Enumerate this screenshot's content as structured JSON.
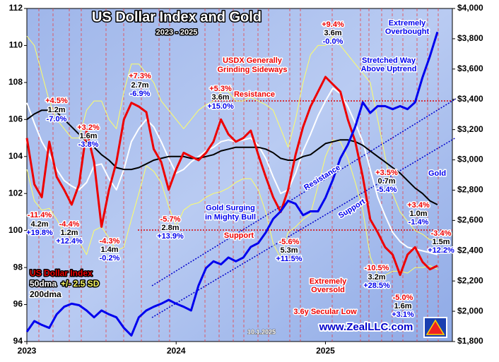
{
  "chart_data": {
    "type": "line",
    "title": "US Dollar Index and Gold",
    "subtitle": "2023 - 2025",
    "x": [
      2023.0,
      2023.05,
      2023.1,
      2023.15,
      2023.2,
      2023.25,
      2023.3,
      2023.35,
      2023.4,
      2023.45,
      2023.5,
      2023.55,
      2023.6,
      2023.65,
      2023.7,
      2023.75,
      2023.8,
      2023.85,
      2023.9,
      2023.95,
      2024.0,
      2024.05,
      2024.1,
      2024.15,
      2024.2,
      2024.25,
      2024.3,
      2024.35,
      2024.4,
      2024.45,
      2024.5,
      2024.55,
      2024.6,
      2024.65,
      2024.7,
      2024.75,
      2024.8,
      2024.85,
      2024.9,
      2024.95,
      2025.0,
      2025.05,
      2025.1,
      2025.15,
      2025.2,
      2025.25,
      2025.3,
      2025.35,
      2025.4,
      2025.45,
      2025.5,
      2025.55,
      2025.6,
      2025.65,
      2025.7,
      2025.75
    ],
    "xlim": [
      2023,
      2025.85
    ],
    "xticks": [
      2023,
      2024,
      2025
    ],
    "ylim": [
      94,
      112
    ],
    "yticks": [
      94,
      96,
      98,
      100,
      102,
      104,
      106,
      108,
      110,
      112
    ],
    "y2lim": [
      1800,
      4000
    ],
    "y2ticks": [
      {
        "value": 1800,
        "label": "$1,800"
      },
      {
        "value": 2000,
        "label": "$2,000"
      },
      {
        "value": 2200,
        "label": "$2,200"
      },
      {
        "value": 2400,
        "label": "$2,400"
      },
      {
        "value": 2600,
        "label": "$2,600"
      },
      {
        "value": 2800,
        "label": "$2,800"
      },
      {
        "value": 3000,
        "label": "$3,000"
      },
      {
        "value": 3200,
        "label": "$3,200"
      },
      {
        "value": 3400,
        "label": "$3,400"
      },
      {
        "value": 3600,
        "label": "$3,600"
      },
      {
        "value": 3800,
        "label": "$3,800"
      },
      {
        "value": 4000,
        "label": "$4,000"
      }
    ],
    "series": [
      {
        "name": "+/- 2.5 SD",
        "color": "#ffff66",
        "width": 1,
        "values": [
          110.5,
          110.0,
          108.5,
          107.0,
          106.0,
          105.5,
          105.0,
          105.0,
          106.5,
          107.0,
          107.0,
          106.0,
          105.5,
          107.5,
          109.0,
          109.0,
          108.5,
          108.0,
          107.0,
          106.5,
          106.0,
          105.5,
          106.0,
          106.5,
          106.8,
          107.0,
          107.5,
          107.5,
          107.0,
          107.0,
          107.2,
          107.0,
          106.8,
          106.5,
          105.5,
          104.5,
          106.0,
          108.0,
          109.5,
          110.0,
          110.0,
          110.5,
          110.0,
          109.5,
          109.0,
          108.5,
          108.0,
          106.0,
          104.0,
          102.0,
          101.0,
          100.5,
          100.0,
          99.8,
          99.5,
          99.5
        ],
        "lower": [
          103.3,
          101.6,
          101.1,
          101.2,
          100.6,
          99.9,
          99.8,
          99.4,
          98.7,
          100.0,
          100.2,
          99.6,
          98.9,
          99.1,
          100.6,
          102.0,
          103.5,
          103.2,
          102.6,
          101.3,
          100.2,
          101.1,
          101.4,
          101.5,
          101.8,
          102.0,
          102.1,
          102.3,
          102.6,
          102.8,
          102.8,
          102.2,
          101.0,
          99.3,
          98.5,
          99.9,
          100.2,
          100.6,
          100.9,
          102.4,
          104.0,
          104.9,
          104.8,
          103.9,
          102.6,
          101.1,
          98.6,
          97.6,
          97.6,
          97.8,
          97.8,
          97.7,
          98.0,
          98.0,
          98.1,
          97.9
        ]
      },
      {
        "name": "50dma",
        "color": "#ffffff",
        "width": 2,
        "values": [
          106.9,
          105.8,
          104.8,
          104.1,
          103.3,
          102.7,
          102.4,
          102.2,
          102.6,
          103.5,
          103.6,
          102.8,
          102.2,
          103.3,
          104.8,
          105.5,
          106.0,
          105.6,
          104.8,
          103.9,
          103.1,
          103.3,
          103.7,
          104.0,
          104.3,
          104.5,
          104.8,
          104.9,
          104.8,
          104.9,
          105.0,
          104.6,
          103.9,
          102.9,
          102.0,
          102.2,
          103.1,
          104.3,
          105.2,
          106.2,
          107.0,
          107.7,
          107.4,
          106.7,
          105.8,
          104.8,
          103.3,
          101.8,
          100.8,
          99.9,
          99.4,
          99.1,
          99.0,
          98.9,
          98.8,
          98.7
        ]
      },
      {
        "name": "200dma",
        "color": "#000000",
        "width": 2,
        "values": [
          106.0,
          106.3,
          106.5,
          106.5,
          106.4,
          106.0,
          105.6,
          105.2,
          104.8,
          104.5,
          104.1,
          103.8,
          103.4,
          103.3,
          103.3,
          103.4,
          103.6,
          103.8,
          103.9,
          104.0,
          104.0,
          104.0,
          103.9,
          103.9,
          104.0,
          104.1,
          104.3,
          104.4,
          104.5,
          104.5,
          104.5,
          104.5,
          104.4,
          104.2,
          103.9,
          103.8,
          103.8,
          104.0,
          104.1,
          104.4,
          104.7,
          104.8,
          104.9,
          104.9,
          104.8,
          104.6,
          104.3,
          104.0,
          103.7,
          103.4,
          103.1,
          102.7,
          102.3,
          102.0,
          101.6,
          101.4
        ]
      },
      {
        "name": "US Dollar Index",
        "color": "#ee0000",
        "width": 3,
        "values": [
          105.0,
          102.5,
          101.8,
          104.8,
          102.9,
          102.2,
          101.4,
          102.5,
          105.4,
          103.7,
          100.2,
          102.2,
          103.7,
          106.0,
          106.9,
          106.7,
          106.4,
          104.4,
          103.7,
          102.2,
          103.3,
          104.2,
          104.0,
          103.8,
          104.2,
          104.8,
          106.0,
          105.2,
          104.8,
          105.0,
          105.4,
          104.1,
          102.9,
          101.8,
          101.0,
          102.2,
          104.1,
          105.6,
          106.7,
          107.5,
          108.3,
          107.9,
          107.5,
          106.0,
          104.8,
          102.9,
          100.6,
          99.9,
          99.1,
          98.7,
          97.6,
          98.7,
          99.1,
          98.3,
          97.9,
          98.1
        ]
      },
      {
        "name": "Gold",
        "color": "#0000ee",
        "width": 3,
        "axis": "y2",
        "values": [
          1865,
          1935,
          1910,
          1890,
          1980,
          2030,
          2050,
          2040,
          2005,
          1960,
          2005,
          1980,
          1960,
          1890,
          1840,
          1960,
          2005,
          2030,
          2050,
          2075,
          2050,
          2030,
          2005,
          2170,
          2285,
          2330,
          2310,
          2355,
          2330,
          2355,
          2425,
          2450,
          2520,
          2610,
          2660,
          2730,
          2710,
          2635,
          2660,
          2660,
          2750,
          2870,
          3010,
          3100,
          3220,
          3380,
          3310,
          3355,
          3355,
          3335,
          3355,
          3335,
          3380,
          3545,
          3685,
          3845
        ]
      }
    ],
    "annotations": [
      "+4.5%",
      "1.2m",
      "-7.0%",
      "+3.2%",
      "1.6m",
      "-3.8%",
      "+7.3%",
      "2.7m",
      "-6.9%",
      "+5.3%",
      "3.6m",
      "+15.0%",
      "+9.4%",
      "3.6m",
      "-0.0%",
      "USDX Generally",
      "Grinding Sideways",
      "Resistance",
      "-11.4%",
      "4.2m",
      "+19.8%",
      "-4.4%",
      "1.2m",
      "+12.4%",
      "-4.3%",
      "1.4m",
      "-0.2%",
      "-5.7%",
      "2.8m",
      "+13.9%",
      "Gold Surging",
      "in Mighty Bull",
      "Support",
      "-5.6%",
      "5.3m",
      "+11.5%",
      "Resistance",
      "Support",
      "Extremely",
      "Overbought",
      "Stretched Way",
      "Above Uptrend",
      "+3.5%",
      "0.7m",
      "-5.4%",
      "+3.4%",
      "1.0m",
      "-1.4%",
      "-3.4%",
      "1.5m",
      "+12.2%",
      "-10.5%",
      "3.2m",
      "+28.5%",
      "Extremely",
      "Oversold",
      "-5.0%",
      "1.6m",
      "+3.1%",
      "3.6y Secular Low",
      "10.1.2025",
      "www.ZealLLC.com"
    ]
  }
}
